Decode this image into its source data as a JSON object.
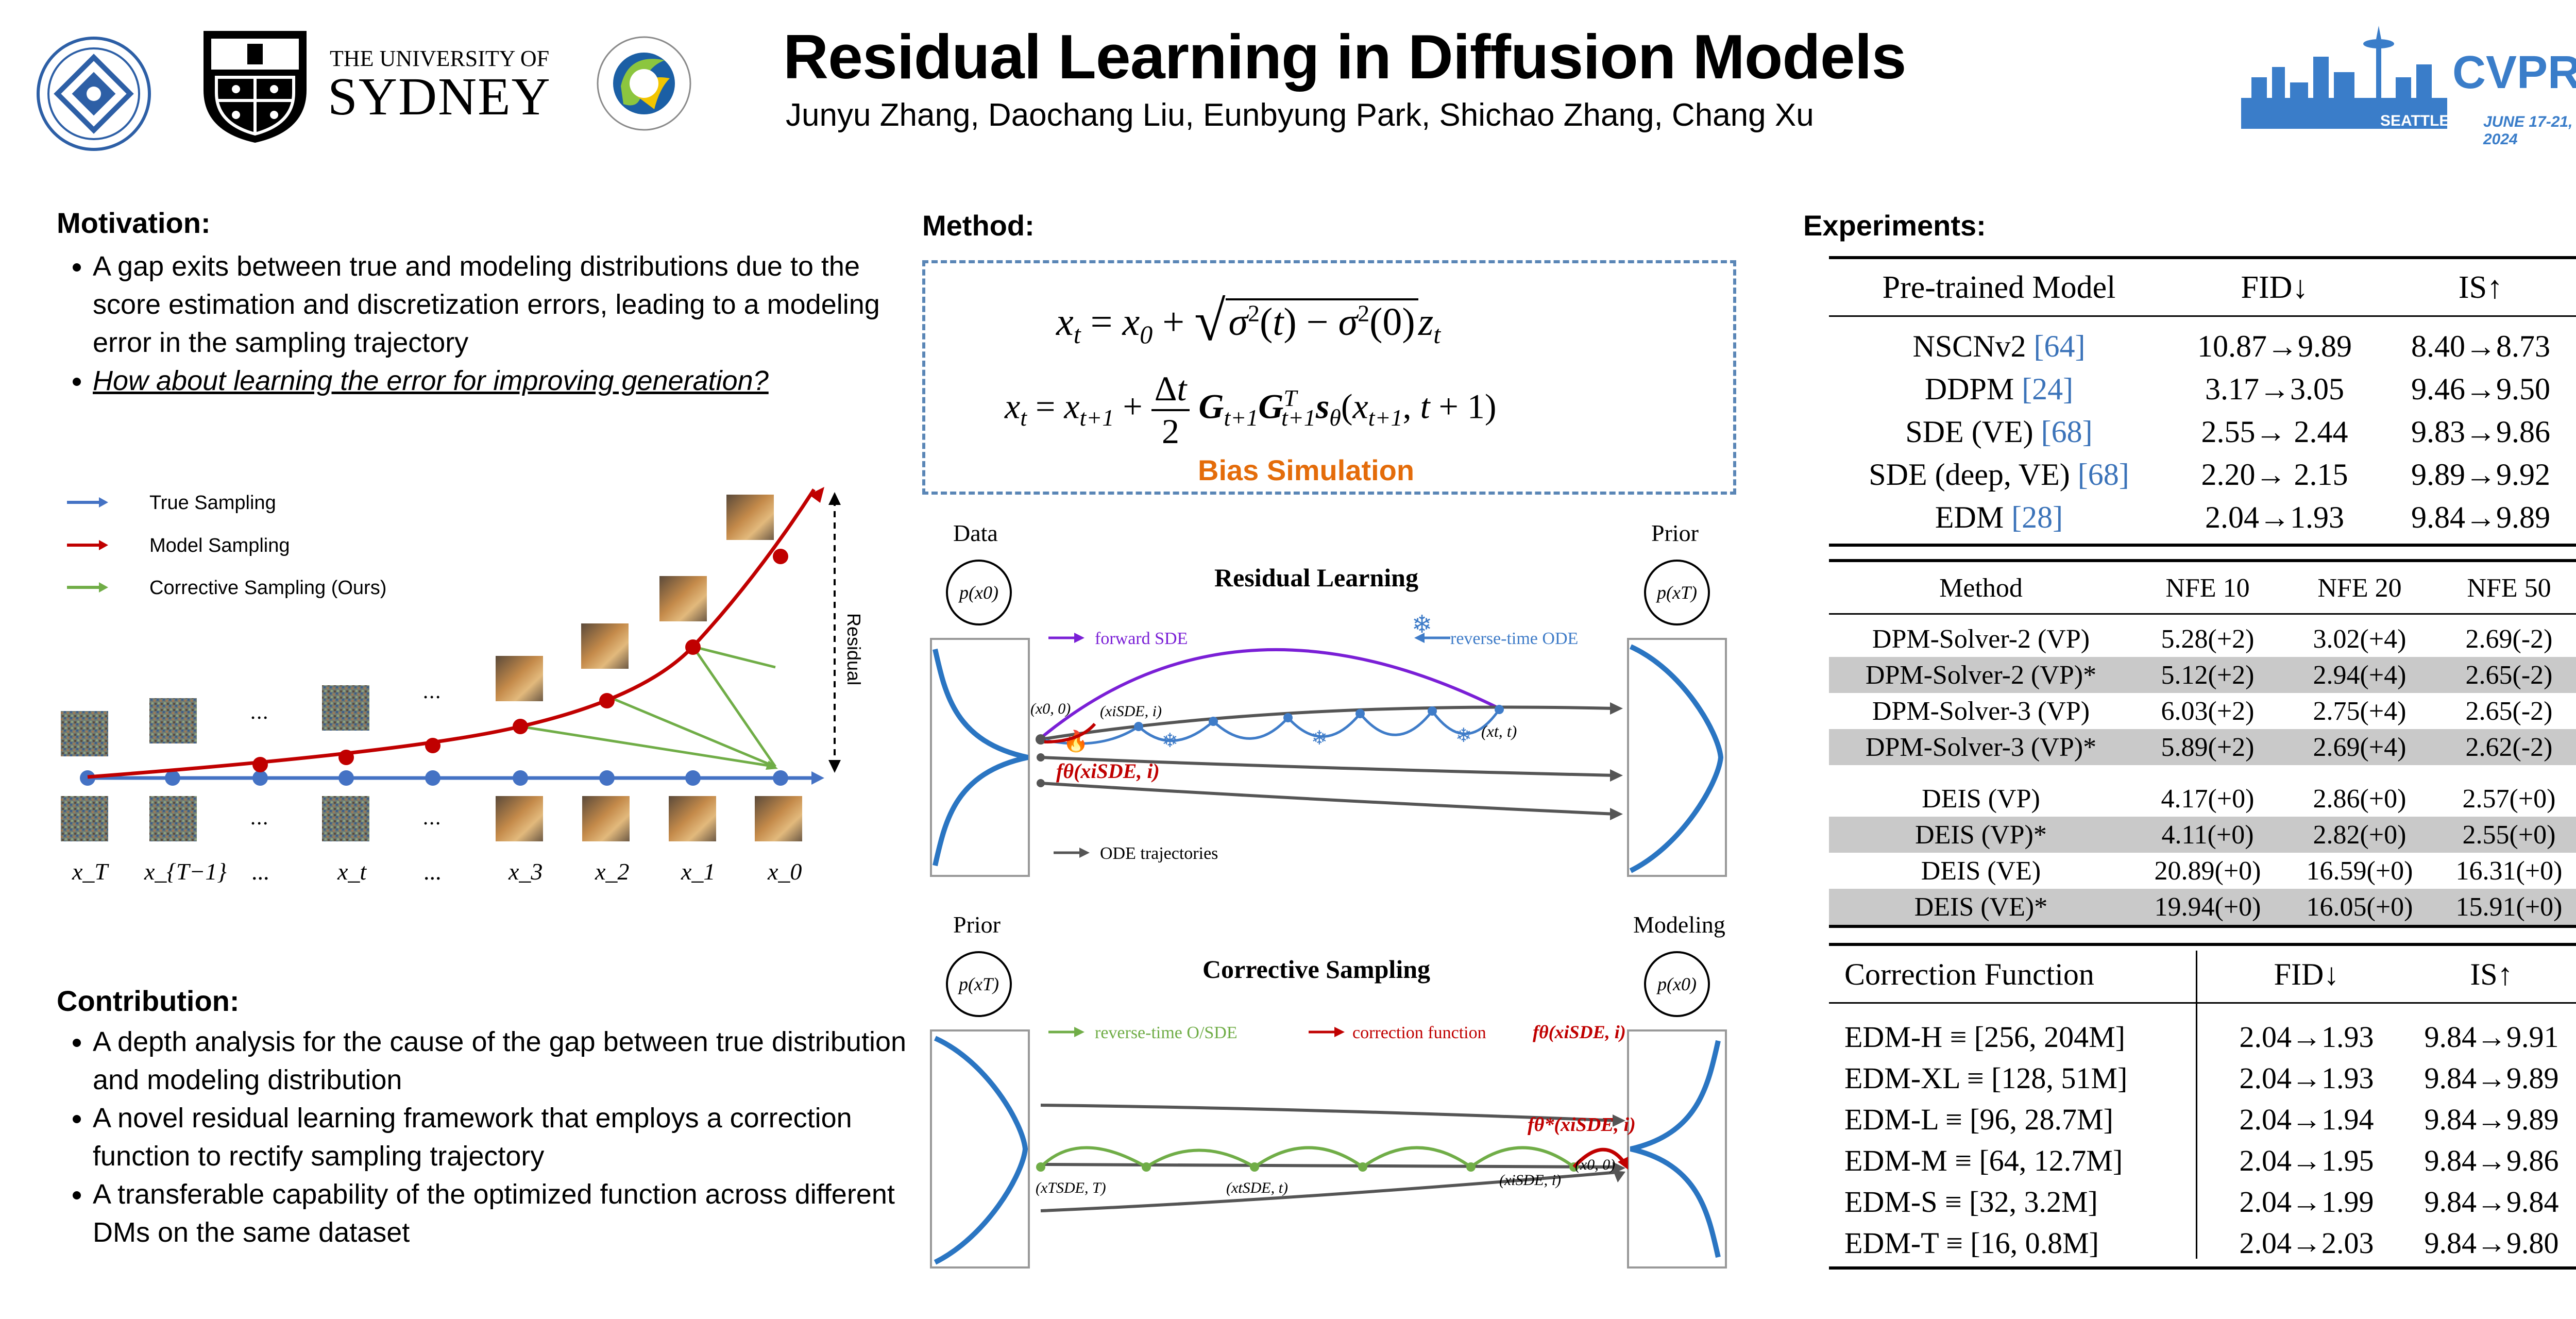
{
  "header": {
    "title": "Residual Learning in Diffusion Models",
    "authors": "Junyu Zhang, Daochang Liu, Eunbyung Park, Shichao Zhang, Chang Xu",
    "sydney_line1": "THE UNIVERSITY OF",
    "sydney_line2": "SYDNEY",
    "cvpr": "CVPR",
    "cvpr_place": "SEATTLE, WA",
    "cvpr_date": "JUNE 17-21, 2024"
  },
  "motivation": {
    "heading": "Motivation:",
    "bullets": [
      "A gap exits between true and modeling distributions due to the score estimation and discretization errors, leading to a modeling error in the sampling trajectory",
      "How about learning the error for improving generation?"
    ]
  },
  "traj_fig": {
    "legend": [
      "True Sampling",
      "Model Sampling",
      "Corrective Sampling (Ours)"
    ],
    "residual": "Residual",
    "dots": "...",
    "xlabels": [
      "x_T",
      "x_{T−1}",
      "...",
      "x_t",
      "...",
      "x_3",
      "x_2",
      "x_1",
      "x_0"
    ]
  },
  "contribution": {
    "heading": "Contribution:",
    "bullets": [
      "A depth analysis for the cause of the gap between true distribution and modeling distribution",
      "A novel residual learning framework that employs a correction function to rectify sampling trajectory",
      "A transferable capability of the optimized function across different DMs on the same dataset"
    ]
  },
  "method": {
    "heading": "Method:",
    "bias": "Bias Simulation"
  },
  "residual_fig": {
    "title": "Residual Learning",
    "data": "Data",
    "prior": "Prior",
    "px0": "p(x0)",
    "pxT": "p(xT)",
    "forward": "forward SDE",
    "reverse": "reverse-time ODE",
    "ode": "ODE trajectories",
    "x0_0": "(x0, 0)",
    "xi": "(xiSDE, i)",
    "xt": "(xt, t)",
    "ftheta": "fθ(xiSDE, i)"
  },
  "corrective_fig": {
    "title": "Corrective Sampling",
    "prior": "Prior",
    "modeling": "Modeling",
    "pxT": "p(xT)",
    "px0": "p(x0)",
    "reverse": "reverse-time O/SDE",
    "correction": "correction function",
    "fcorr": "fθ(xiSDE, i)",
    "fcorr2": "fθ*(xiSDE, i)",
    "xT": "(xTSDE, T)",
    "xt": "(xtSDE, t)",
    "xi": "(xiSDE, i)",
    "x0": "(x0, 0)"
  },
  "experiments": {
    "heading": "Experiments:",
    "table1": {
      "headers": [
        "Pre-trained Model",
        "FID↓",
        "IS↑"
      ],
      "rows": [
        {
          "name": "NSCNv2",
          "ref": "[64]",
          "fid": "10.87→9.89",
          "is": "8.40→8.73"
        },
        {
          "name": "DDPM",
          "ref": "[24]",
          "fid": "3.17→3.05",
          "is": "9.46→9.50"
        },
        {
          "name": "SDE (VE)",
          "ref": "[68]",
          "fid": "2.55→ 2.44",
          "is": "9.83→9.86"
        },
        {
          "name": "SDE (deep, VE)",
          "ref": "[68]",
          "fid": "2.20→ 2.15",
          "is": "9.89→9.92"
        },
        {
          "name": "EDM",
          "ref": "[28]",
          "fid": "2.04→1.93",
          "is": "9.84→9.89"
        }
      ]
    },
    "table2": {
      "headers": [
        "Method",
        "NFE 10",
        "NFE 20",
        "NFE 50"
      ],
      "group1": [
        {
          "name": "DPM-Solver-2 (VP)",
          "a": "5.28(+2)",
          "b": "3.02(+4)",
          "c": "2.69(-2)"
        },
        {
          "name": "DPM-Solver-2 (VP)*",
          "a": "5.12(+2)",
          "b": "2.94(+4)",
          "c": "2.65(-2)"
        },
        {
          "name": "DPM-Solver-3 (VP)",
          "a": "6.03(+2)",
          "b": "2.75(+4)",
          "c": "2.65(-2)"
        },
        {
          "name": "DPM-Solver-3 (VP)*",
          "a": "5.89(+2)",
          "b": "2.69(+4)",
          "c": "2.62(-2)"
        }
      ],
      "group2": [
        {
          "name": "DEIS (VP)",
          "a": "4.17(+0)",
          "b": "2.86(+0)",
          "c": "2.57(+0)"
        },
        {
          "name": "DEIS (VP)*",
          "a": "4.11(+0)",
          "b": "2.82(+0)",
          "c": "2.55(+0)"
        },
        {
          "name": "DEIS (VE)",
          "a": "20.89(+0)",
          "b": "16.59(+0)",
          "c": "16.31(+0)"
        },
        {
          "name": "DEIS (VE)*",
          "a": "19.94(+0)",
          "b": "16.05(+0)",
          "c": "15.91(+0)"
        }
      ]
    },
    "table3": {
      "headers": [
        "Correction Function",
        "FID↓",
        "IS↑"
      ],
      "rows": [
        {
          "name": "EDM-H ≡ [256, 204M]",
          "fid": "2.04→1.93",
          "is": "9.84→9.91"
        },
        {
          "name": "EDM-XL ≡ [128, 51M]",
          "fid": "2.04→1.93",
          "is": "9.84→9.89"
        },
        {
          "name": "EDM-L ≡ [96, 28.7M]",
          "fid": "2.04→1.94",
          "is": "9.84→9.89"
        },
        {
          "name": "EDM-M ≡ [64, 12.7M]",
          "fid": "2.04→1.95",
          "is": "9.84→9.86"
        },
        {
          "name": "EDM-S ≡ [32, 3.2M]",
          "fid": "2.04→1.99",
          "is": "9.84→9.84"
        },
        {
          "name": "EDM-T ≡ [16, 0.8M]",
          "fid": "2.04→2.03",
          "is": "9.84→9.80"
        }
      ]
    }
  },
  "colors": {
    "true": "#4472c4",
    "model": "#c00000",
    "corrective": "#70ad47",
    "bias": "#e46c0a",
    "ref": "#3b73b9"
  }
}
